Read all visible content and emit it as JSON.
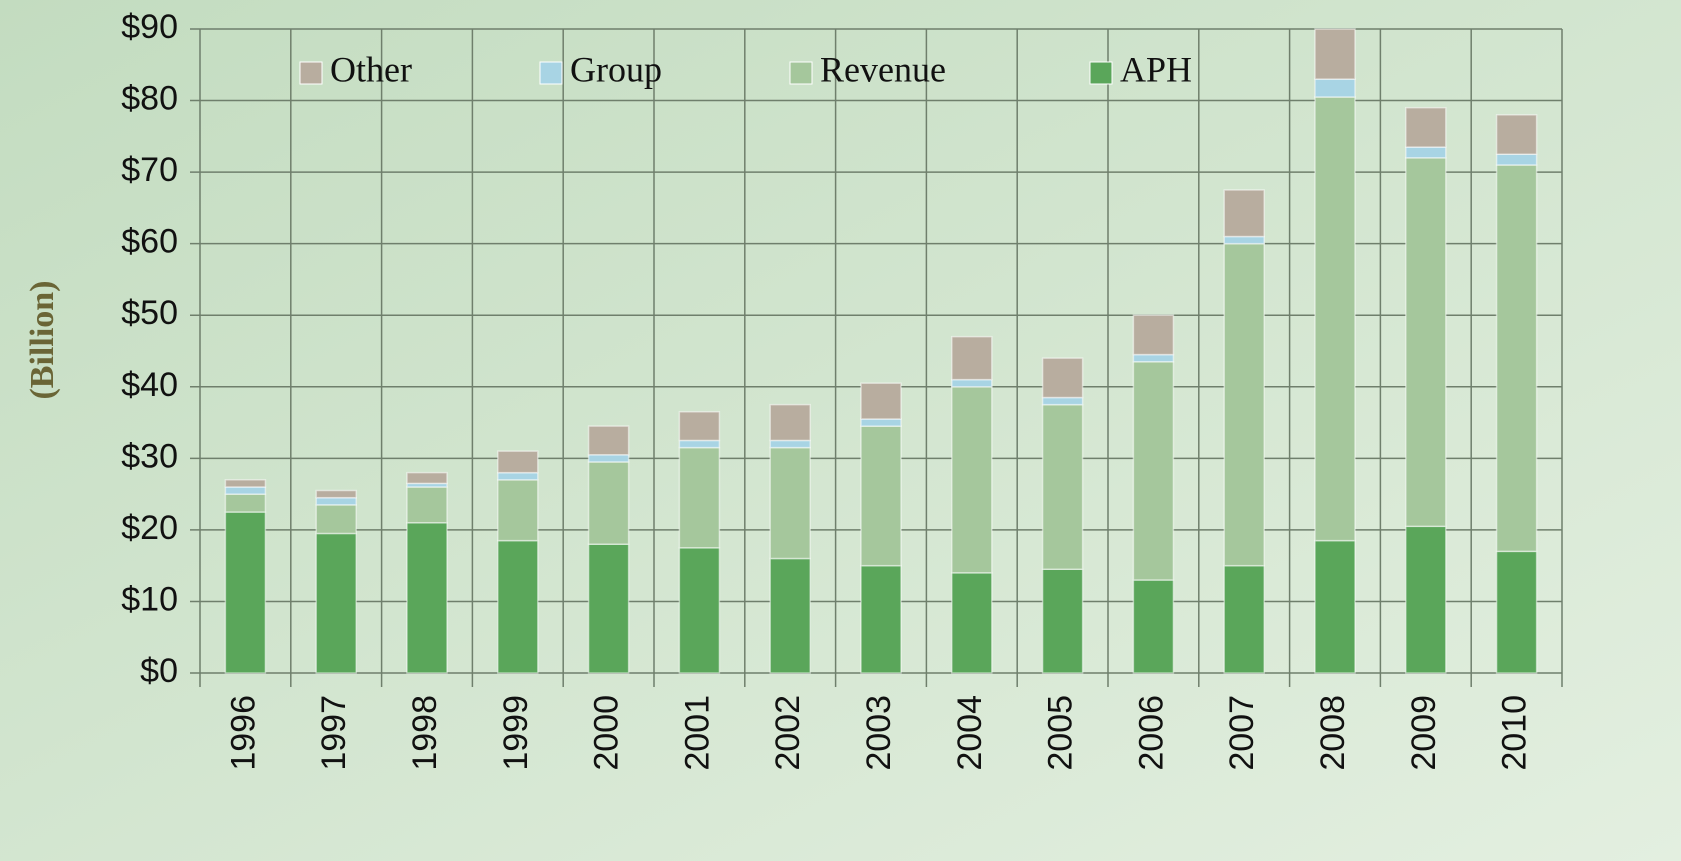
{
  "chart_data": {
    "type": "stacked_bar",
    "y_axis_label": "(Billion)",
    "categories": [
      "1996",
      "1997",
      "1998",
      "1999",
      "2000",
      "2001",
      "2002",
      "2003",
      "2004",
      "2005",
      "2006",
      "2007",
      "2008",
      "2009",
      "2010"
    ],
    "series": [
      {
        "name": "Other",
        "color": "#b8ad9f",
        "values": [
          1,
          1,
          1.5,
          3,
          4,
          4,
          5,
          5,
          6,
          5.5,
          5.5,
          6.5,
          7,
          5.5,
          5.5
        ]
      },
      {
        "name": "Group",
        "color": "#a8d4e4",
        "values": [
          1,
          1,
          0.5,
          1,
          1,
          1,
          1,
          1,
          1,
          1,
          1,
          1,
          2.5,
          1.5,
          1.5
        ]
      },
      {
        "name": "Revenue",
        "color": "#a5c79c",
        "values": [
          2.5,
          4,
          5,
          8.5,
          11.5,
          14,
          15.5,
          19.5,
          26,
          23,
          30.5,
          45,
          62,
          51.5,
          54
        ]
      },
      {
        "name": "APH",
        "color": "#5aa65a",
        "values": [
          22.5,
          19.5,
          21,
          18.5,
          18,
          17.5,
          16,
          15,
          14,
          14.5,
          13,
          15,
          18.5,
          20.5,
          17
        ]
      }
    ],
    "ylim": [
      0,
      90
    ],
    "yticks": [
      {
        "value": 0,
        "label": "$0"
      },
      {
        "value": 10,
        "label": "$10"
      },
      {
        "value": 20,
        "label": "$20"
      },
      {
        "value": 30,
        "label": "$30"
      },
      {
        "value": 40,
        "label": "$40"
      },
      {
        "value": 50,
        "label": "$50"
      },
      {
        "value": 60,
        "label": "$60"
      },
      {
        "value": 70,
        "label": "$70"
      },
      {
        "value": 80,
        "label": "$80"
      },
      {
        "value": 90,
        "label": "$90"
      }
    ],
    "grid": true,
    "legend": "top"
  }
}
